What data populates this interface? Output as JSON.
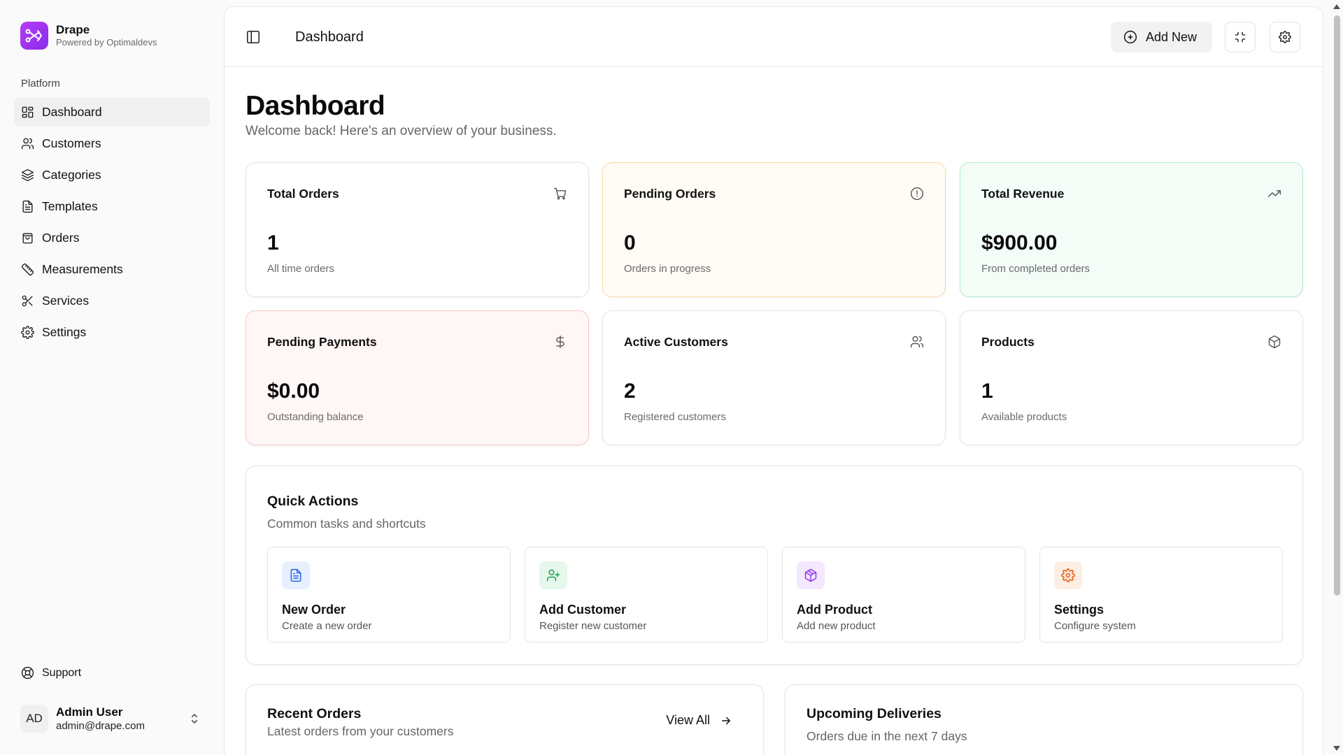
{
  "brand": {
    "name": "Drape",
    "subtitle": "Powered by Optimaldevs"
  },
  "sidebar": {
    "group_label": "Platform",
    "items": [
      {
        "label": "Dashboard",
        "icon": "dashboard-icon",
        "active": true
      },
      {
        "label": "Customers",
        "icon": "users-icon"
      },
      {
        "label": "Categories",
        "icon": "layers-icon"
      },
      {
        "label": "Templates",
        "icon": "file-icon"
      },
      {
        "label": "Orders",
        "icon": "bag-icon"
      },
      {
        "label": "Measurements",
        "icon": "ruler-icon"
      },
      {
        "label": "Services",
        "icon": "scissors-icon"
      },
      {
        "label": "Settings",
        "icon": "gear-icon"
      }
    ],
    "support_label": "Support",
    "user": {
      "initials": "AD",
      "name": "Admin User",
      "email": "admin@drape.com"
    }
  },
  "topbar": {
    "title": "Dashboard",
    "add_new_label": "Add New"
  },
  "page": {
    "title": "Dashboard",
    "subtitle": "Welcome back! Here's an overview of your business."
  },
  "stats": [
    {
      "label": "Total Orders",
      "value": "1",
      "desc": "All time orders",
      "icon": "cart-icon"
    },
    {
      "label": "Pending Orders",
      "value": "0",
      "desc": "Orders in progress",
      "icon": "alert-circle-icon",
      "accent": "#fcd8a6"
    },
    {
      "label": "Total Revenue",
      "value": "$900.00",
      "desc": "From completed orders",
      "icon": "trending-up-icon",
      "accent": "#b6ebcb"
    },
    {
      "label": "Pending Payments",
      "value": "$0.00",
      "desc": "Outstanding balance",
      "icon": "dollar-icon",
      "accent": "#fac8c8"
    },
    {
      "label": "Active Customers",
      "value": "2",
      "desc": "Registered customers",
      "icon": "users-icon"
    },
    {
      "label": "Products",
      "value": "1",
      "desc": "Available products",
      "icon": "box-icon"
    }
  ],
  "quick_actions": {
    "title": "Quick Actions",
    "subtitle": "Common tasks and shortcuts",
    "items": [
      {
        "title": "New Order",
        "desc": "Create a new order",
        "icon": "file-text-icon",
        "color": "#2563eb",
        "bg": "#e8f0fe"
      },
      {
        "title": "Add Customer",
        "desc": "Register new customer",
        "icon": "user-plus-icon",
        "color": "#16a34a",
        "bg": "#e6f7ec"
      },
      {
        "title": "Add Product",
        "desc": "Add new product",
        "icon": "package-icon",
        "color": "#9333ea",
        "bg": "#f3e8fd"
      },
      {
        "title": "Settings",
        "desc": "Configure system",
        "icon": "gear-icon",
        "color": "#ea580c",
        "bg": "#fdeee4"
      }
    ]
  },
  "recent_orders": {
    "title": "Recent Orders",
    "subtitle": "Latest orders from your customers",
    "view_all_label": "View All"
  },
  "upcoming_deliveries": {
    "title": "Upcoming Deliveries",
    "subtitle": "Orders due in the next 7 days"
  }
}
